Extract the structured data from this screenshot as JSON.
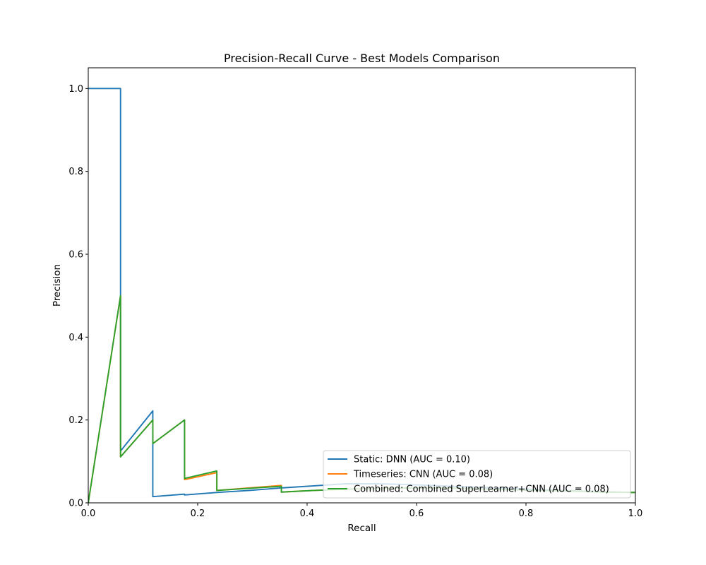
{
  "chart_data": {
    "type": "line",
    "title": "Precision-Recall Curve - Best Models Comparison",
    "xlabel": "Recall",
    "ylabel": "Precision",
    "xlim": [
      0.0,
      1.0
    ],
    "ylim": [
      0.0,
      1.05
    ],
    "x_ticks": [
      "0.0",
      "0.2",
      "0.4",
      "0.6",
      "0.8",
      "1.0"
    ],
    "y_ticks": [
      "0.0",
      "0.2",
      "0.4",
      "0.6",
      "0.8",
      "1.0"
    ],
    "grid": false,
    "legend_position": "lower-right",
    "series": [
      {
        "name": "Static: DNN (AUC = 0.10)",
        "color": "#1f77b4",
        "x": [
          0.0,
          0.059,
          0.059,
          0.118,
          0.118,
          0.176,
          0.176,
          0.235,
          0.294,
          0.353,
          0.412,
          0.471,
          0.529,
          0.588,
          0.647,
          0.706,
          0.765,
          0.824,
          0.882,
          0.941,
          1.0
        ],
        "y": [
          1.0,
          1.0,
          0.125,
          0.222,
          0.015,
          0.021,
          0.019,
          0.025,
          0.03,
          0.036,
          0.041,
          0.046,
          0.046,
          0.044,
          0.041,
          0.038,
          0.035,
          0.032,
          0.029,
          0.027,
          0.025
        ]
      },
      {
        "name": "Timeseries: CNN (AUC = 0.08)",
        "color": "#ff7f0e",
        "x": [
          0.0,
          0.059,
          0.059,
          0.118,
          0.118,
          0.176,
          0.176,
          0.235,
          0.235,
          0.294,
          0.353,
          0.353,
          0.412,
          0.471,
          0.529,
          0.588,
          0.647,
          0.706,
          0.765,
          0.824,
          0.882,
          0.941,
          1.0
        ],
        "y": [
          0.0,
          0.5,
          0.111,
          0.2,
          0.143,
          0.2,
          0.056,
          0.073,
          0.03,
          0.036,
          0.042,
          0.026,
          0.03,
          0.033,
          0.035,
          0.036,
          0.036,
          0.034,
          0.032,
          0.03,
          0.028,
          0.026,
          0.025
        ]
      },
      {
        "name": "Combined: Combined SuperLearner+CNN (AUC = 0.08)",
        "color": "#2ca02c",
        "x": [
          0.0,
          0.059,
          0.059,
          0.118,
          0.118,
          0.176,
          0.176,
          0.235,
          0.235,
          0.294,
          0.353,
          0.353,
          0.412,
          0.471,
          0.529,
          0.588,
          0.647,
          0.706,
          0.765,
          0.824,
          0.882,
          0.941,
          1.0
        ],
        "y": [
          0.0,
          0.5,
          0.111,
          0.2,
          0.143,
          0.2,
          0.059,
          0.077,
          0.03,
          0.035,
          0.04,
          0.026,
          0.03,
          0.033,
          0.035,
          0.036,
          0.036,
          0.034,
          0.032,
          0.03,
          0.028,
          0.026,
          0.025
        ]
      }
    ]
  }
}
